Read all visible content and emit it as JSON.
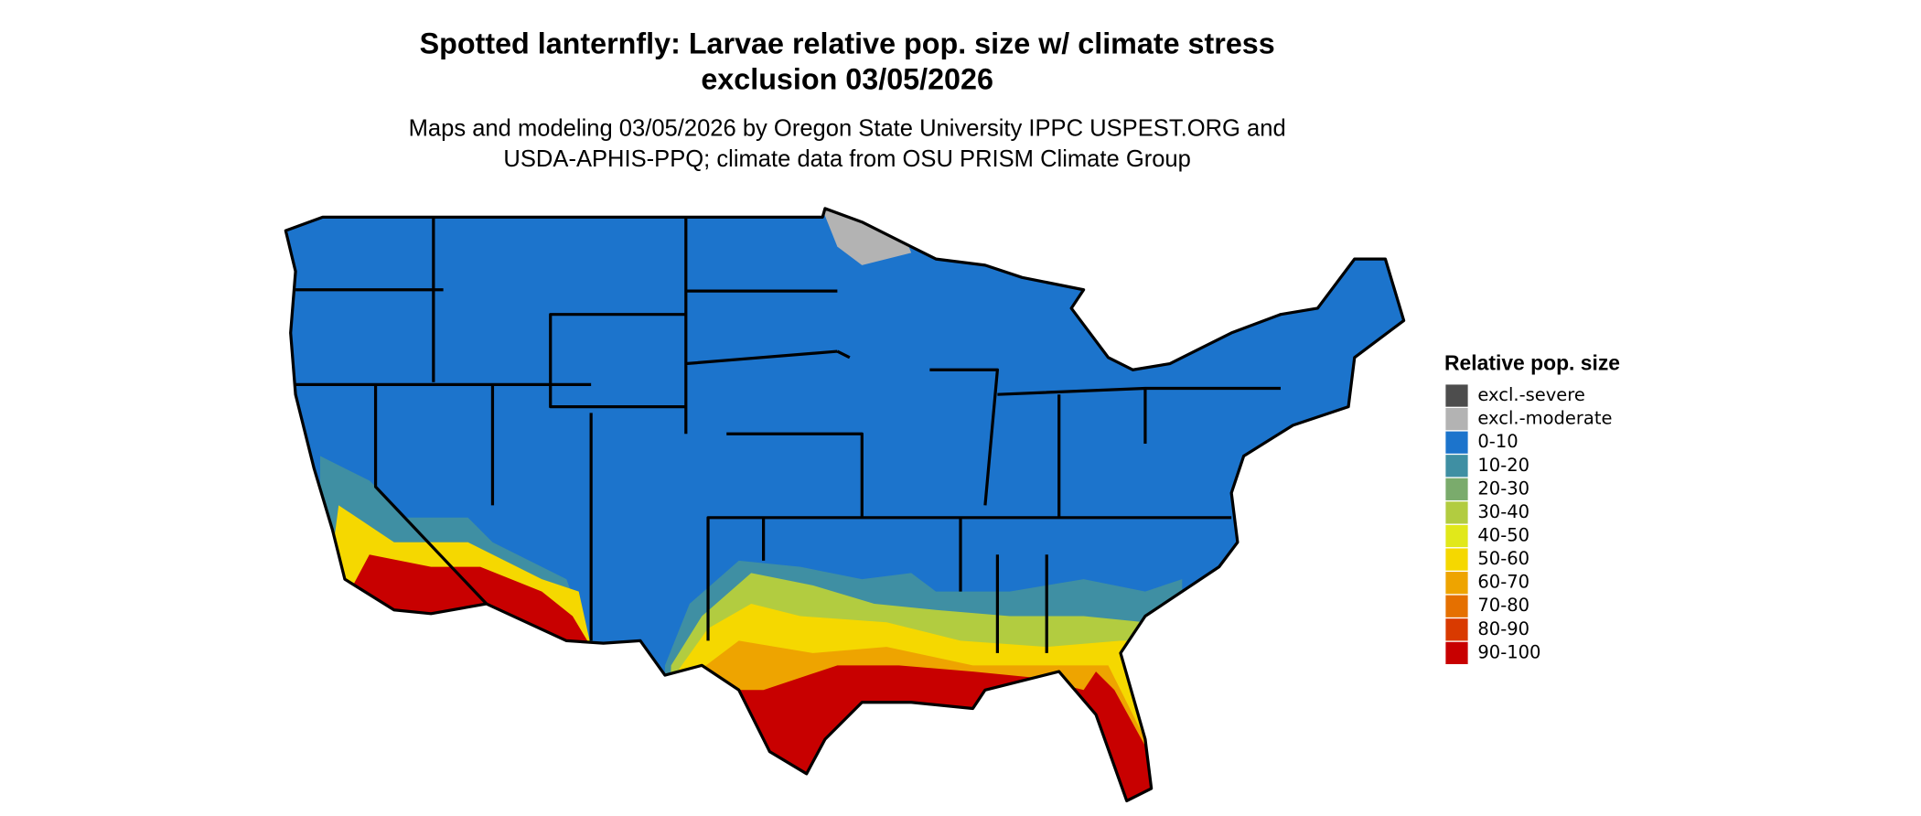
{
  "title": [
    "Spotted lanternfly: Larvae relative pop. size w/ climate stress",
    "exclusion 03/05/2026"
  ],
  "subtitle": [
    "Maps and modeling 03/05/2026 by Oregon State University IPPC USPEST.ORG and",
    "USDA-APHIS-PPQ; climate data from OSU PRISM Climate Group"
  ],
  "legend": {
    "title": "Relative pop. size",
    "items": [
      {
        "label": "excl.-severe",
        "color": "#4d4d4d"
      },
      {
        "label": "excl.-moderate",
        "color": "#b3b3b3"
      },
      {
        "label": "0-10",
        "color": "#1c74cc"
      },
      {
        "label": "10-20",
        "color": "#3f8fa3"
      },
      {
        "label": "20-30",
        "color": "#7aab6c"
      },
      {
        "label": "30-40",
        "color": "#b2cc40"
      },
      {
        "label": "40-50",
        "color": "#e1e81a"
      },
      {
        "label": "50-60",
        "color": "#f5d800"
      },
      {
        "label": "60-70",
        "color": "#eea400"
      },
      {
        "label": "70-80",
        "color": "#e57000"
      },
      {
        "label": "80-90",
        "color": "#d93a00"
      },
      {
        "label": "90-100",
        "color": "#c80000"
      }
    ]
  }
}
